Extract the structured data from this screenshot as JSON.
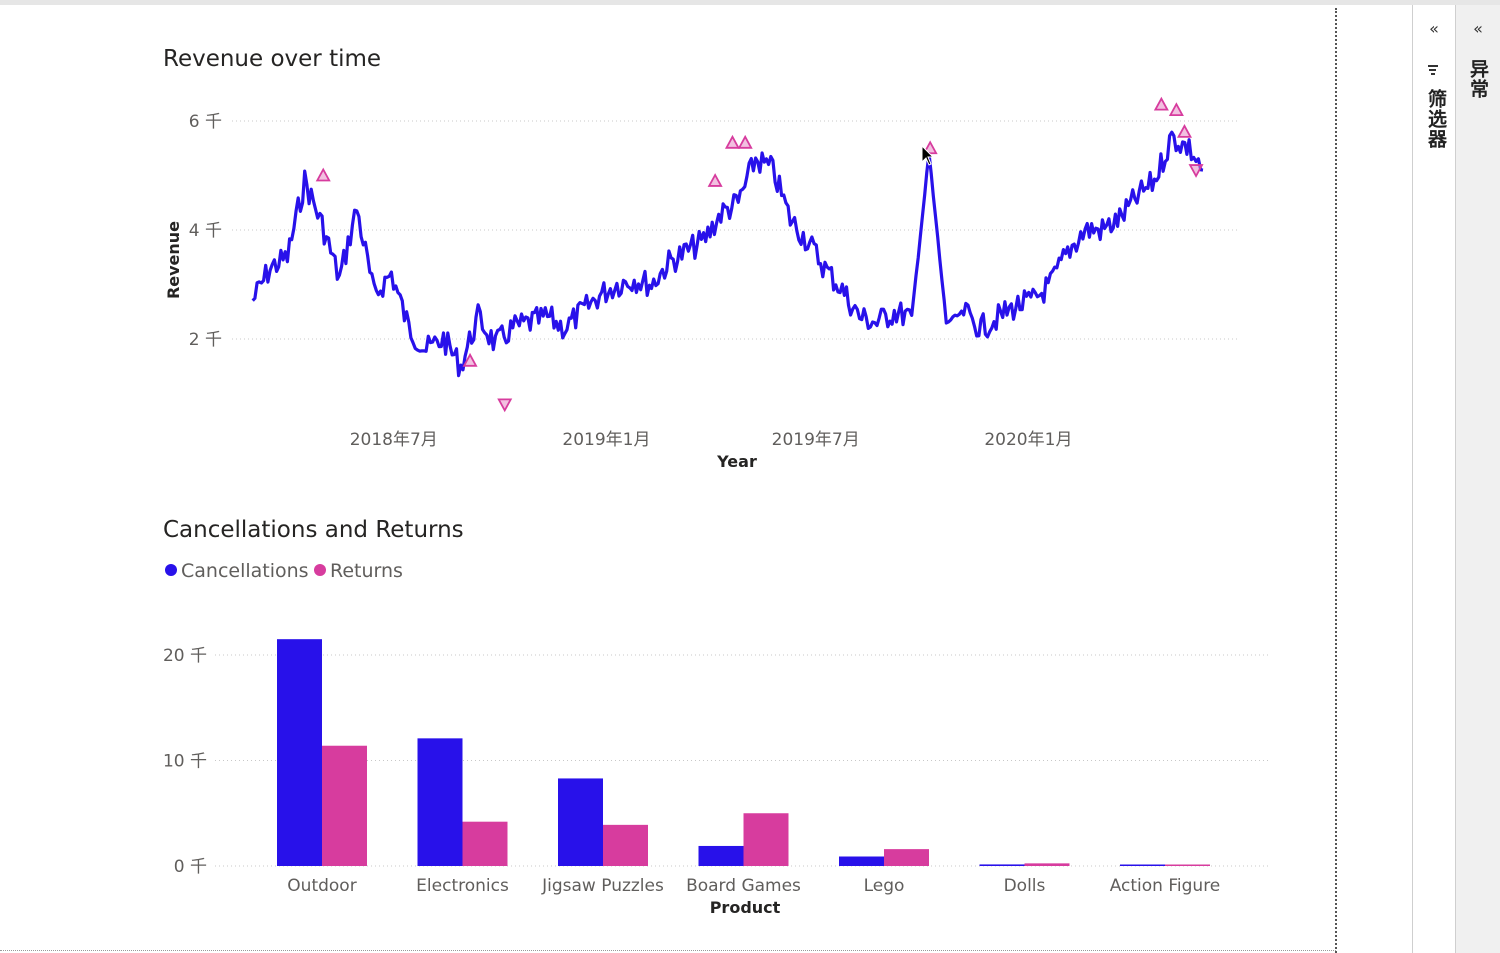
{
  "colors": {
    "cancellations": "#2811EA",
    "returns": "#D73C9E",
    "anomaly": "#D73C9E",
    "grid": "#c8c8c8",
    "axis_text": "#605e5c",
    "title_text": "#252423"
  },
  "side_panes": {
    "filters": {
      "label": "筛选器",
      "collapse_icon": "double-chevron-left-icon",
      "filter_icon": "filter-icon"
    },
    "anomaly": {
      "label": "异常",
      "collapse_icon": "double-chevron-left-icon"
    }
  },
  "chart_data": [
    {
      "type": "line",
      "title": "Revenue over time",
      "xlabel": "Year",
      "ylabel": "Revenue",
      "x_ticks": [
        "2018年7月",
        "2019年1月",
        "2019年7月",
        "2020年1月"
      ],
      "y_ticks": [
        "2 千",
        "4 千",
        "6 千"
      ],
      "grid": true,
      "series": [
        {
          "color": "#2811EA",
          "x": [
            "2018-03-01",
            "2018-03-16",
            "2018-03-31",
            "2018-04-15",
            "2018-04-30",
            "2018-05-15",
            "2018-05-30",
            "2018-06-14",
            "2018-06-29",
            "2018-07-14",
            "2018-07-29",
            "2018-08-13",
            "2018-08-28",
            "2018-09-12",
            "2018-09-27",
            "2018-10-12",
            "2018-10-27",
            "2018-11-11",
            "2018-11-26",
            "2018-12-11",
            "2018-12-26",
            "2019-01-10",
            "2019-01-25",
            "2019-02-09",
            "2019-02-24",
            "2019-03-11",
            "2019-03-26",
            "2019-04-10",
            "2019-04-25",
            "2019-05-10",
            "2019-05-25",
            "2019-06-09",
            "2019-06-24",
            "2019-07-09",
            "2019-07-24",
            "2019-08-02",
            "2019-08-08",
            "2019-08-23",
            "2019-09-07",
            "2019-09-22",
            "2019-10-07",
            "2019-10-22",
            "2019-11-06",
            "2019-11-21",
            "2019-12-06",
            "2019-12-21",
            "2020-01-05",
            "2020-01-20",
            "2020-02-04",
            "2020-02-19",
            "2020-03-05",
            "2020-03-20",
            "2020-04-04",
            "2020-04-19",
            "2020-05-04",
            "2020-05-19",
            "2020-05-31"
          ],
          "y": [
            2.7,
            3.3,
            3.5,
            4.9,
            4.1,
            3.1,
            4.4,
            2.8,
            3.2,
            2.2,
            1.8,
            2.0,
            1.5,
            2.4,
            1.9,
            2.2,
            2.3,
            2.4,
            2.2,
            2.5,
            2.8,
            3.0,
            3.1,
            3.0,
            3.4,
            3.6,
            3.8,
            4.3,
            4.5,
            5.3,
            5.1,
            4.2,
            3.8,
            3.3,
            2.9,
            2.6,
            2.4,
            2.3,
            2.5,
            2.4,
            5.4,
            2.3,
            2.5,
            2.2,
            2.4,
            2.6,
            2.7,
            3.0,
            3.6,
            4.0,
            4.0,
            4.2,
            4.6,
            4.9,
            5.7,
            5.5,
            5.1
          ]
        }
      ],
      "anomalies": [
        {
          "x": "2018-05-01",
          "y": 5.0,
          "dir": "up"
        },
        {
          "x": "2018-09-05",
          "y": 1.6,
          "dir": "up"
        },
        {
          "x": "2018-10-05",
          "y": 0.8,
          "dir": "down"
        },
        {
          "x": "2019-04-05",
          "y": 4.9,
          "dir": "up"
        },
        {
          "x": "2019-04-20",
          "y": 5.6,
          "dir": "up"
        },
        {
          "x": "2019-05-01",
          "y": 5.6,
          "dir": "up"
        },
        {
          "x": "2019-10-08",
          "y": 5.5,
          "dir": "up"
        },
        {
          "x": "2020-04-25",
          "y": 6.3,
          "dir": "up"
        },
        {
          "x": "2020-05-08",
          "y": 6.2,
          "dir": "up"
        },
        {
          "x": "2020-05-15",
          "y": 5.8,
          "dir": "up"
        },
        {
          "x": "2020-05-25",
          "y": 5.1,
          "dir": "down"
        }
      ],
      "x_range": [
        "2018-02-18",
        "2020-07-15"
      ],
      "y_range": [
        0,
        7
      ]
    },
    {
      "type": "bar",
      "title": "Cancellations and Returns",
      "xlabel": "Product",
      "ylabel": "",
      "categories": [
        "Outdoor",
        "Electronics",
        "Jigsaw Puzzles",
        "Board Games",
        "Lego",
        "Dolls",
        "Action Figure"
      ],
      "series": [
        {
          "name": "Cancellations",
          "color": "#2811EA",
          "values": [
            21.5,
            12.1,
            8.3,
            1.9,
            0.9,
            0.15,
            0.1
          ]
        },
        {
          "name": "Returns",
          "color": "#D73C9E",
          "values": [
            11.4,
            4.2,
            3.9,
            5.0,
            1.6,
            0.25,
            0.1
          ]
        }
      ],
      "y_ticks": [
        "0 千",
        "10 千",
        "20 千"
      ],
      "ylim": [
        0,
        25
      ],
      "legend_position": "top-left",
      "grid": true
    }
  ]
}
